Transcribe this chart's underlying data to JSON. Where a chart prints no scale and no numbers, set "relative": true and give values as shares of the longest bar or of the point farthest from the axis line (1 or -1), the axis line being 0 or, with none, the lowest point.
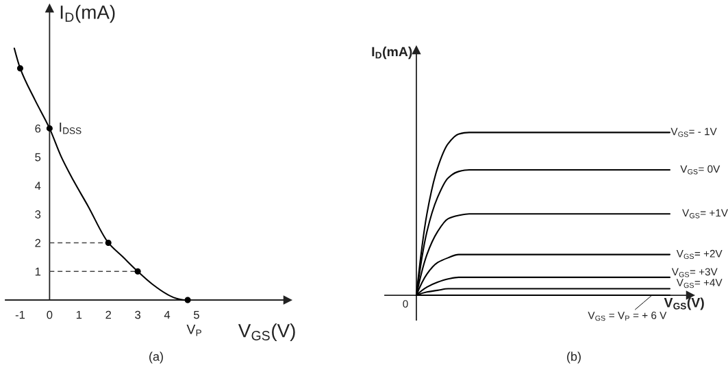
{
  "chart_data": [
    {
      "type": "line",
      "title": "(a)",
      "xlabel": "V$_{GS}$(V)",
      "ylabel": "I$_{D}$(mA)",
      "xlim": [
        -1.5,
        8.1
      ],
      "ylim": [
        0,
        10.2
      ],
      "xticks": [
        -1,
        0,
        1,
        2,
        3,
        4,
        5
      ],
      "yticks": [
        1,
        2,
        3,
        4,
        5,
        6
      ],
      "series": [
        {
          "x": [
            -1.2,
            -1,
            -0.5,
            0,
            0.4,
            0.8,
            1.3,
            2,
            2.5,
            3,
            3.5,
            4,
            4.3,
            4.6
          ],
          "values": [
            8.8,
            8.1,
            7,
            6,
            5,
            4.2,
            3.3,
            2,
            1.5,
            1,
            0.55,
            0.2,
            0.06,
            0
          ],
          "color": "#000000"
        },
        {
          "type": "scatter",
          "x": [
            -1,
            0,
            2,
            3,
            4.7
          ],
          "values": [
            8.1,
            6,
            2,
            1,
            0
          ],
          "color": "#000000",
          "marker": "circle"
        },
        {
          "x": [
            0,
            2
          ],
          "values": [
            2,
            2
          ],
          "color": "#444444",
          "line_style": "dashed"
        },
        {
          "x": [
            0,
            3
          ],
          "values": [
            1,
            1
          ],
          "color": "#444444",
          "line_style": "dashed"
        }
      ],
      "annotations": [
        {
          "text": "I$_{DSS}$",
          "x": 0,
          "y": 6
        },
        {
          "text": "V$_{P}$",
          "x": 4.7,
          "y": 0
        }
      ]
    },
    {
      "type": "line",
      "title": "(b)",
      "xlabel": "V$_{GS}$(V)",
      "ylabel": "I$_{D}$(mA)",
      "relative": true,
      "categories": [
        null,
        null,
        null,
        null,
        null,
        null,
        null,
        null,
        null,
        null,
        null,
        null,
        null,
        null,
        null,
        null,
        null,
        null,
        null,
        null,
        null,
        null,
        null,
        null,
        null
      ],
      "series": [
        {
          "name": "V$_{GS}$= - 1V",
          "color": "#000000",
          "values": [
            0,
            0.5,
            0.78,
            0.93,
            0.99,
            1,
            1,
            1,
            1,
            1,
            1,
            1,
            1,
            1,
            1,
            1,
            1,
            1,
            1,
            1,
            1,
            1,
            1,
            1,
            1
          ]
        },
        {
          "name": "V$_{GS}$= 0V",
          "color": "#000000",
          "values": [
            0,
            0.39,
            0.6,
            0.72,
            0.76,
            0.77,
            0.77,
            0.77,
            0.77,
            0.77,
            0.77,
            0.77,
            0.77,
            0.77,
            0.77,
            0.77,
            0.77,
            0.77,
            0.77,
            0.77,
            0.77,
            0.77,
            0.77,
            0.77,
            0.77
          ]
        },
        {
          "name": "V$_{GS}$= +1V",
          "color": "#000000",
          "values": [
            0,
            0.25,
            0.39,
            0.47,
            0.49,
            0.5,
            0.5,
            0.5,
            0.5,
            0.5,
            0.5,
            0.5,
            0.5,
            0.5,
            0.5,
            0.5,
            0.5,
            0.5,
            0.5,
            0.5,
            0.5,
            0.5,
            0.5,
            0.5,
            0.5
          ]
        },
        {
          "name": "V$_{GS}$= +2V",
          "color": "#000000",
          "values": [
            0,
            0.13,
            0.2,
            0.23,
            0.25,
            0.25,
            0.25,
            0.25,
            0.25,
            0.25,
            0.25,
            0.25,
            0.25,
            0.25,
            0.25,
            0.25,
            0.25,
            0.25,
            0.25,
            0.25,
            0.25,
            0.25,
            0.25,
            0.25,
            0.25
          ]
        },
        {
          "name": "V$_{GS}$= +3V",
          "color": "#000000",
          "values": [
            0,
            0.05,
            0.08,
            0.1,
            0.11,
            0.11,
            0.11,
            0.11,
            0.11,
            0.11,
            0.11,
            0.11,
            0.11,
            0.11,
            0.11,
            0.11,
            0.11,
            0.11,
            0.11,
            0.11,
            0.11,
            0.11,
            0.11,
            0.11,
            0.11
          ]
        },
        {
          "name": "V$_{GS}$= +4V",
          "color": "#000000",
          "values": [
            0,
            0.02,
            0.03,
            0.04,
            0.04,
            0.04,
            0.04,
            0.04,
            0.04,
            0.04,
            0.04,
            0.04,
            0.04,
            0.04,
            0.04,
            0.04,
            0.04,
            0.04,
            0.04,
            0.04,
            0.04,
            0.04,
            0.04,
            0.04,
            0.04
          ]
        },
        {
          "name": "V$_{GS}$ = V$_{P}$ = + 6 V",
          "color": "#000000",
          "values": [
            0,
            0,
            0,
            0,
            0,
            0,
            0,
            0,
            0,
            0,
            0,
            0,
            0,
            0,
            0,
            0,
            0,
            0,
            0,
            0,
            0,
            0,
            0,
            0,
            0
          ]
        }
      ],
      "annotations": [
        "0"
      ]
    }
  ]
}
